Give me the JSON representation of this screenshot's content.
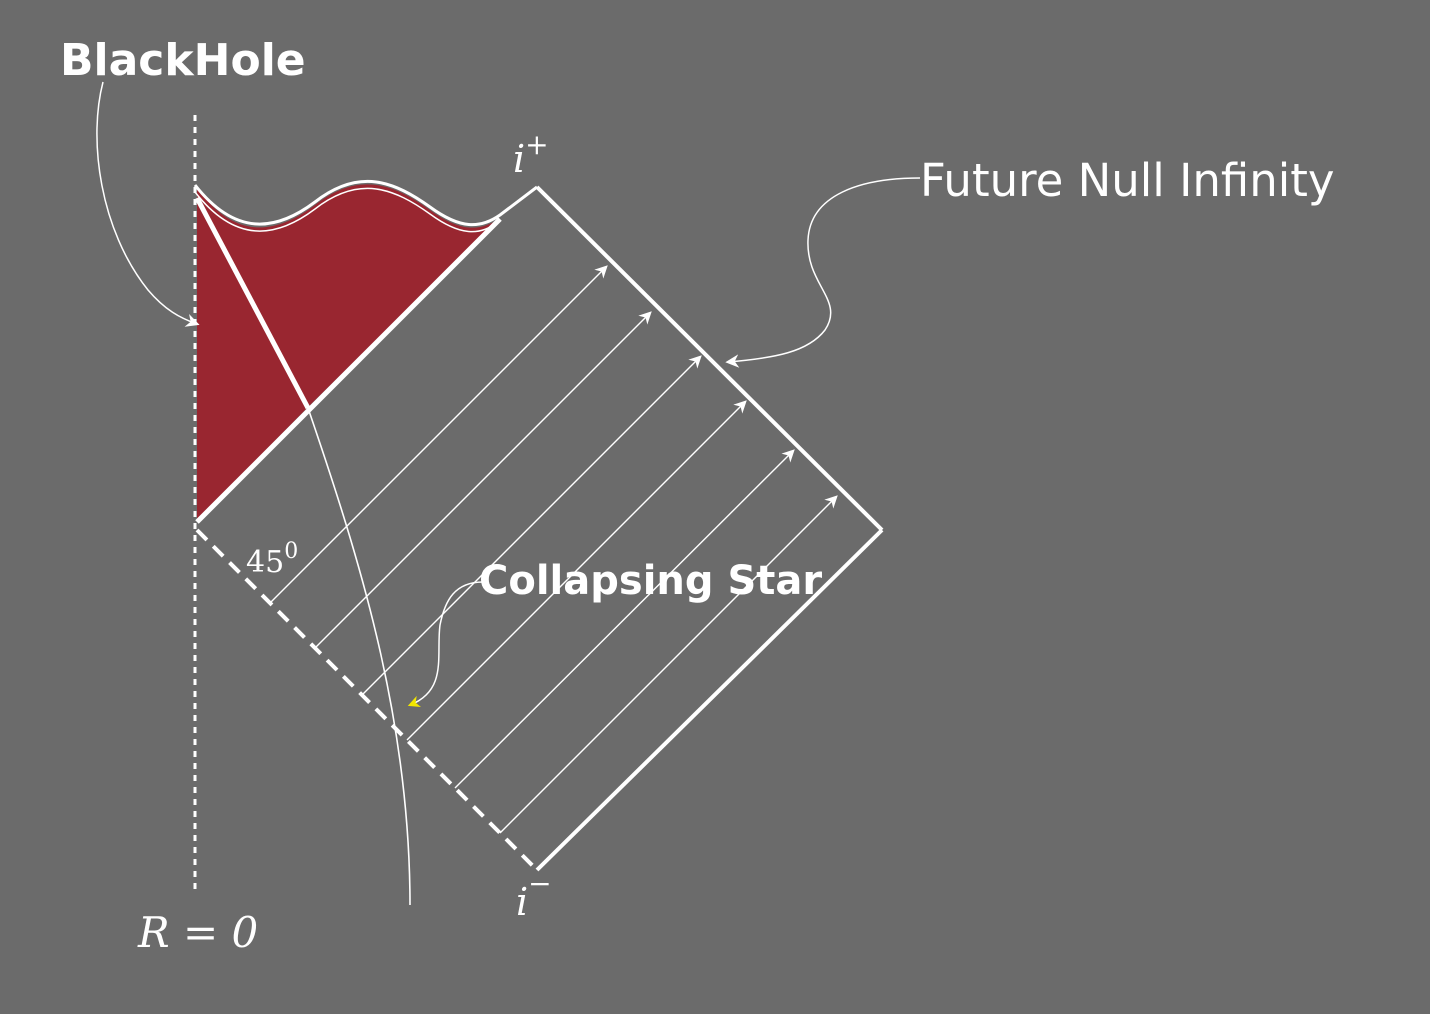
{
  "labels": {
    "black_hole": "BlackHole",
    "future_null_infinity": "Future Null Infinity",
    "collapsing_star": "Collapsing Star",
    "i_plus_base": "i",
    "i_plus_sup": "+",
    "i_minus_base": "i",
    "i_minus_sup": "−",
    "angle_base": "45",
    "angle_sup": "0",
    "r_zero": "R = 0"
  },
  "colors": {
    "background": "#6b6b6b",
    "black_hole_fill": "#992630",
    "lines": "#ffffff",
    "collapsing_star_arrow": "#f2e600"
  }
}
